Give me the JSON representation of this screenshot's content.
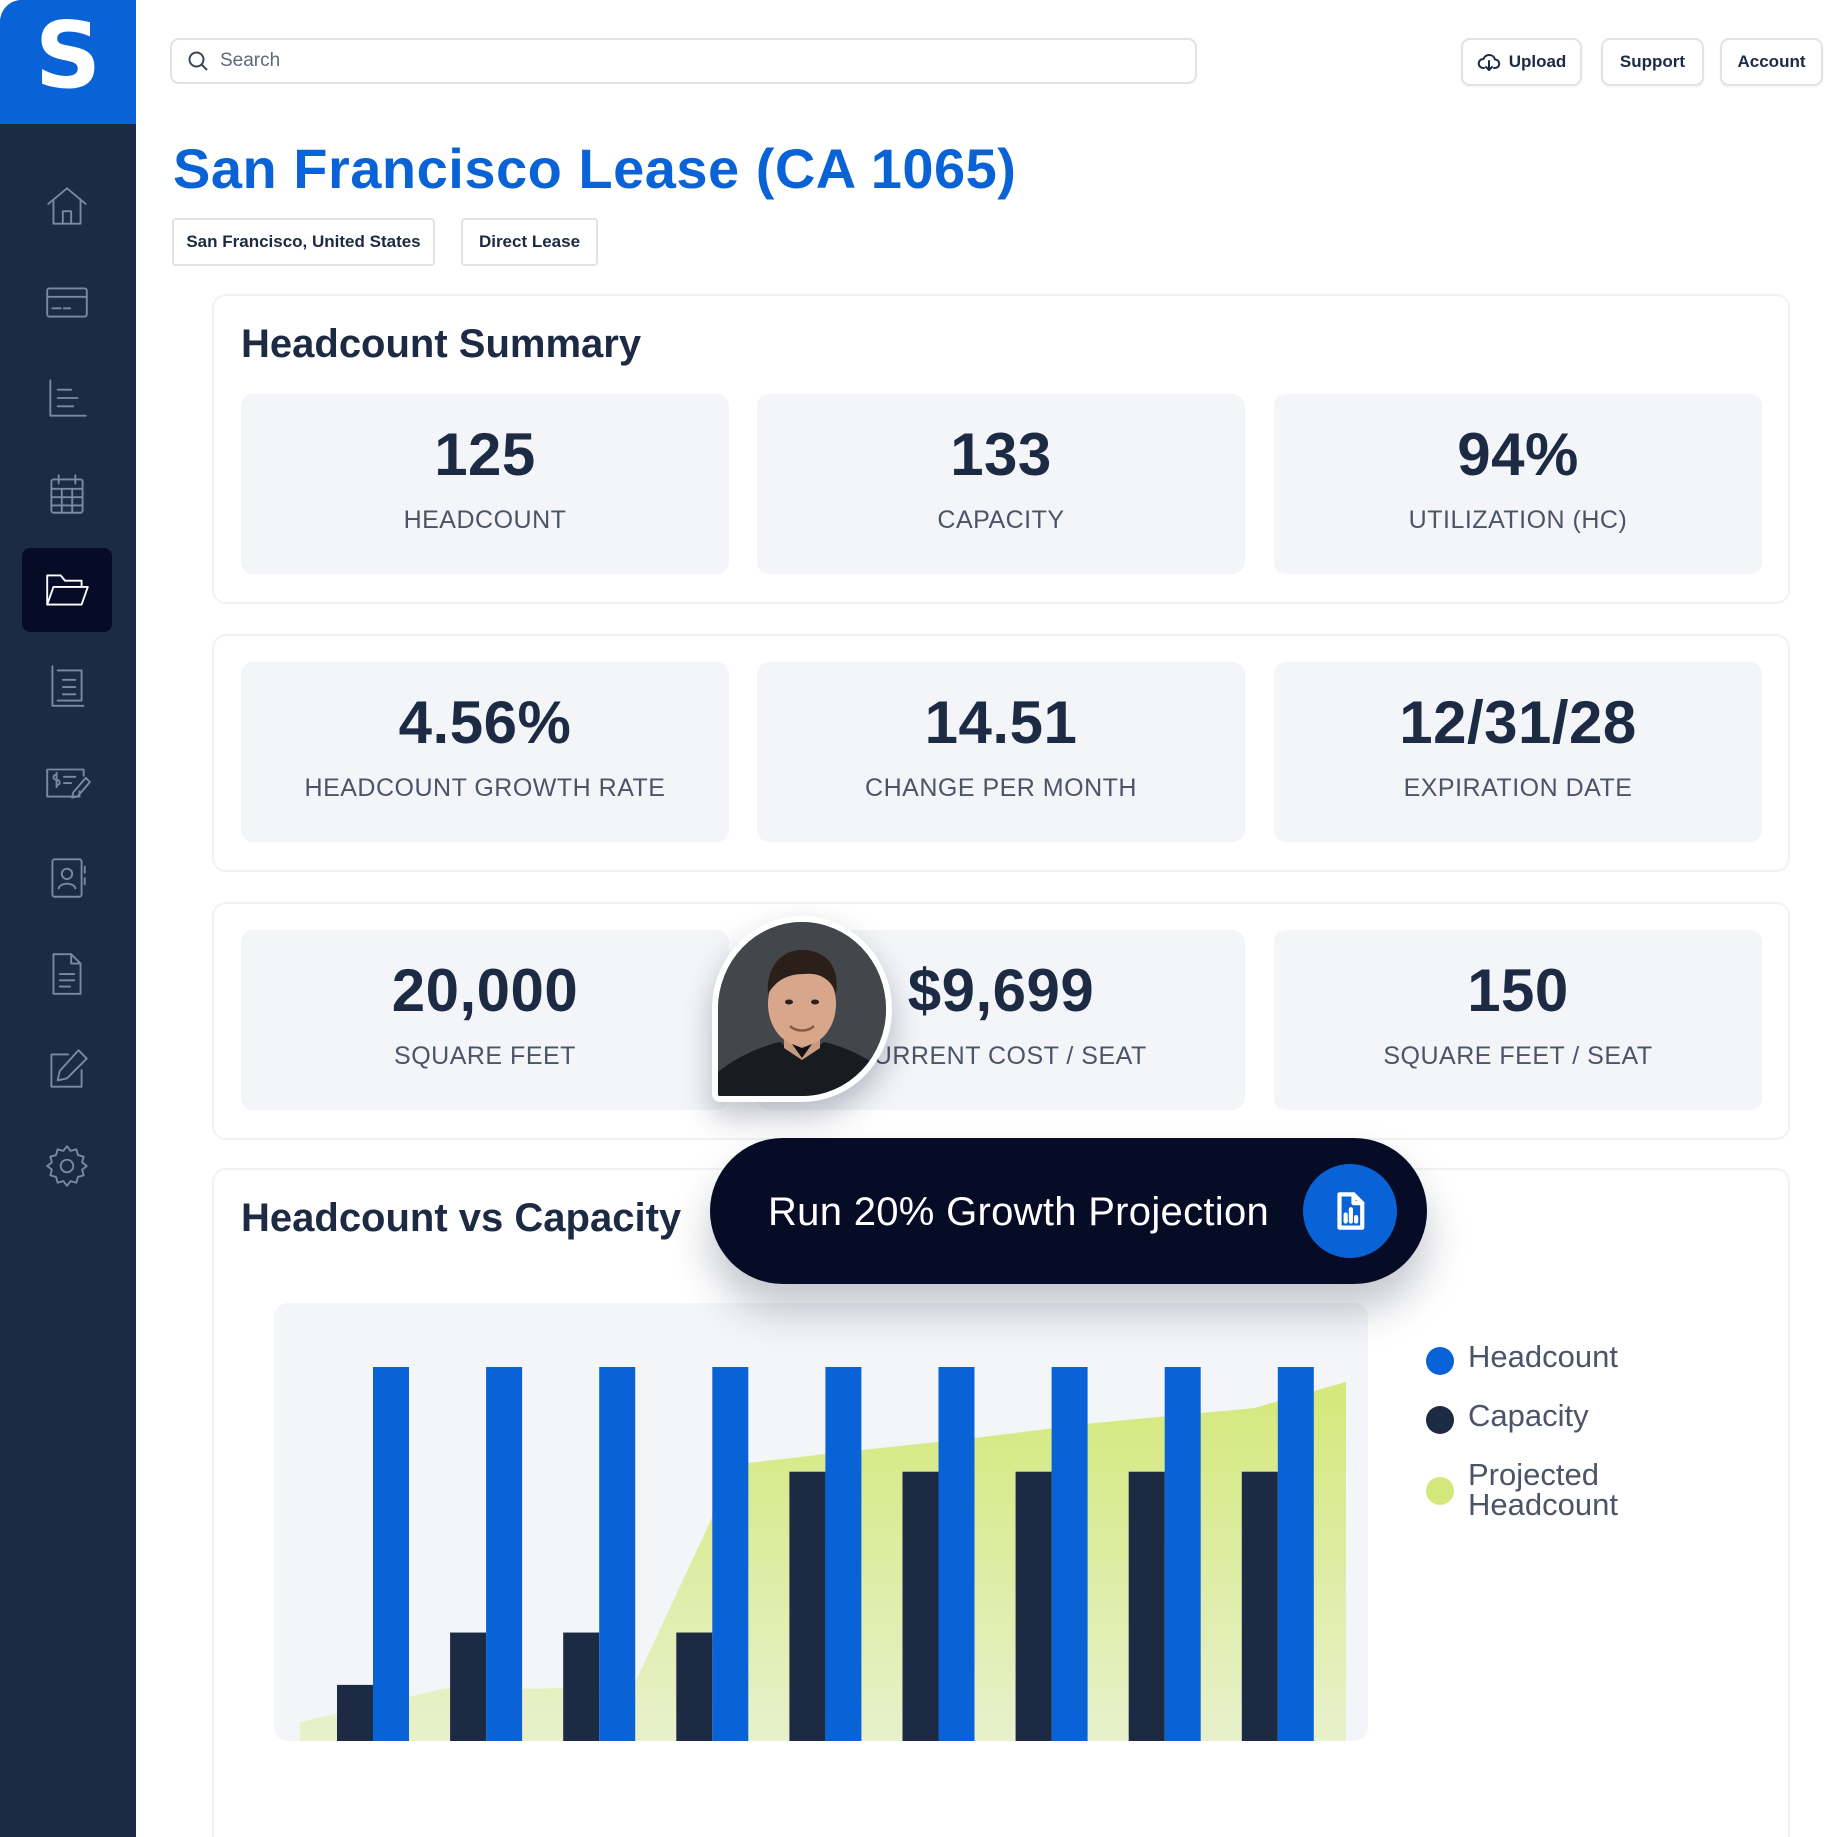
{
  "app": {
    "logo_letter": "S"
  },
  "sidebar": {
    "items": [
      {
        "icon": "home-icon"
      },
      {
        "icon": "credit-card-icon"
      },
      {
        "icon": "report-list-icon"
      },
      {
        "icon": "calendar-icon"
      },
      {
        "icon": "folder-open-icon",
        "active": true
      },
      {
        "icon": "ledger-icon"
      },
      {
        "icon": "payment-check-icon"
      },
      {
        "icon": "contact-book-icon"
      },
      {
        "icon": "document-icon"
      },
      {
        "icon": "edit-icon"
      },
      {
        "icon": "settings-icon"
      }
    ]
  },
  "header": {
    "search_placeholder": "Search",
    "upload_label": "Upload",
    "support_label": "Support",
    "account_label": "Account"
  },
  "page": {
    "title": "San Francisco Lease (CA 1065)",
    "tags": [
      "San Francisco, United States",
      "Direct Lease"
    ]
  },
  "headcount_summary": {
    "title": "Headcount Summary",
    "row1": [
      {
        "value": "125",
        "label": "HEADCOUNT"
      },
      {
        "value": "133",
        "label": "CAPACITY"
      },
      {
        "value": "94%",
        "label": "UTILIZATION (HC)"
      }
    ],
    "row2": [
      {
        "value": "4.56%",
        "label": "HEADCOUNT GROWTH RATE"
      },
      {
        "value": "14.51",
        "label": "CHANGE PER MONTH"
      },
      {
        "value": "12/31/28",
        "label": "EXPIRATION DATE"
      }
    ],
    "row3": [
      {
        "value": "20,000",
        "label": "SQUARE FEET"
      },
      {
        "value": "$9,699",
        "label": "CURRENT COST / SEAT"
      },
      {
        "value": "150",
        "label": "SQUARE FEET / SEAT"
      }
    ]
  },
  "chart_section": {
    "title": "Headcount vs Capacity",
    "cta_label": "Run 20% Growth Projection"
  },
  "colors": {
    "brand": "#0a63d6",
    "sidebar": "#1c2a44",
    "headcount": "#0a63d6",
    "capacity": "#1c2a44",
    "projected": "#d4e87a"
  },
  "chart_data": {
    "type": "bar",
    "series": [
      {
        "name": "Headcount",
        "values": [
          100,
          100,
          100,
          100,
          100,
          100,
          100,
          100,
          100
        ]
      },
      {
        "name": "Capacity",
        "values": [
          15,
          29,
          29,
          29,
          72,
          72,
          72,
          72,
          72
        ]
      },
      {
        "name": "Projected Headcount",
        "values": [
          5,
          14,
          14,
          15,
          74,
          77,
          81,
          85,
          89,
          96
        ]
      }
    ],
    "legend": [
      "Headcount",
      "Capacity",
      "Projected Headcount"
    ],
    "legend_position": "right"
  }
}
